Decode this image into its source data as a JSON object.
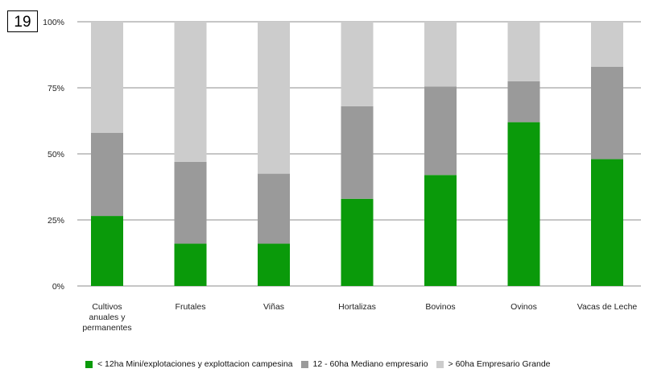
{
  "page_number": "19",
  "chart_data": {
    "type": "bar",
    "stacked": true,
    "categories": [
      "Cultivos anuales y permanentes",
      "Frutales",
      "Viñas",
      "Hortalizas",
      "Bovinos",
      "Ovinos",
      "Vacas de Leche"
    ],
    "category_lines": [
      [
        "Cultivos",
        "anuales y",
        "permanentes"
      ],
      [
        "Frutales"
      ],
      [
        "Viñas"
      ],
      [
        "Hortalizas"
      ],
      [
        "Bovinos"
      ],
      [
        "Ovinos"
      ],
      [
        "Vacas de Leche"
      ]
    ],
    "series": [
      {
        "name": "< 12ha Mini/explotaciones y explottacion campesina",
        "color": "#0a9a0a",
        "values": [
          26.5,
          16,
          16,
          33,
          42,
          62,
          48
        ]
      },
      {
        "name": "12 - 60ha Mediano empresario",
        "color": "#9a9a9a",
        "values": [
          31.5,
          31,
          26.5,
          35,
          33.5,
          15.5,
          35
        ]
      },
      {
        "name": "> 60ha Empresario Grande",
        "color": "#cccccc",
        "values": [
          42,
          53,
          57.5,
          32,
          24.5,
          22.5,
          17
        ]
      }
    ],
    "ylim": [
      0,
      100
    ],
    "yticks": [
      "0%",
      "25%",
      "50%",
      "75%",
      "100%"
    ],
    "ytick_values": [
      0,
      25,
      50,
      75,
      100
    ],
    "grid": true,
    "legend_position": "bottom",
    "xlabel": "",
    "ylabel": ""
  }
}
